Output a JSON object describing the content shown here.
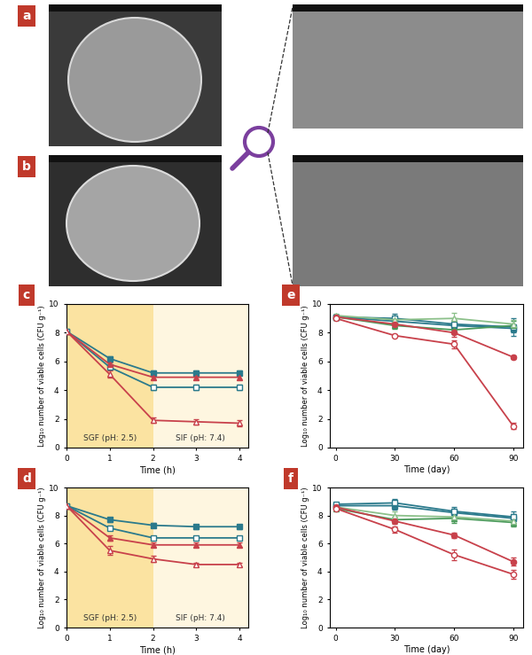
{
  "images": [
    {
      "panel": "a"
    },
    {
      "panel": "b"
    }
  ],
  "chart_data": [
    {
      "panel": "c",
      "type": "line",
      "x": [
        0,
        1,
        2,
        3,
        4
      ],
      "xlim": [
        0,
        4.2
      ],
      "xticks": [
        0,
        1,
        2,
        3,
        4
      ],
      "ylim": [
        0,
        10
      ],
      "yticks": [
        0,
        2,
        4,
        6,
        8,
        10
      ],
      "xlabel": "Time (h)",
      "ylabel": "Log₁₀ number of viable cells (CFU g⁻¹)",
      "regions": [
        {
          "x": [
            0,
            2
          ],
          "label": "SGF (pH: 2.5)",
          "color": "#fbe3a1"
        },
        {
          "x": [
            2,
            4.2
          ],
          "label": "SIF (pH: 7.4)",
          "color": "#fef6e0"
        }
      ],
      "series": [
        {
          "color": "#2b7a8c",
          "marker": "square",
          "values": [
            8.1,
            6.2,
            5.2,
            5.2,
            5.2
          ],
          "errors": [
            0.1,
            0.15,
            0.15,
            0.15,
            0.15
          ]
        },
        {
          "color": "#2b7a8c",
          "marker": "square_open",
          "values": [
            8.1,
            5.6,
            4.2,
            4.2,
            4.2
          ],
          "errors": [
            0.1,
            0.15,
            0.2,
            0.2,
            0.2
          ]
        },
        {
          "color": "#c8414b",
          "marker": "triangle",
          "values": [
            8.1,
            5.8,
            4.9,
            4.9,
            4.9
          ],
          "errors": [
            0.1,
            0.15,
            0.15,
            0.15,
            0.15
          ]
        },
        {
          "color": "#c8414b",
          "marker": "triangle_open",
          "values": [
            8.1,
            5.1,
            1.9,
            1.8,
            1.7
          ],
          "errors": [
            0.1,
            0.25,
            0.2,
            0.2,
            0.2
          ]
        }
      ]
    },
    {
      "panel": "d",
      "type": "line",
      "x": [
        0,
        1,
        2,
        3,
        4
      ],
      "xlim": [
        0,
        4.2
      ],
      "xticks": [
        0,
        1,
        2,
        3,
        4
      ],
      "ylim": [
        0,
        10
      ],
      "yticks": [
        0,
        2,
        4,
        6,
        8,
        10
      ],
      "xlabel": "Time (h)",
      "ylabel": "Log₁₀ number of viable cells (CFU g⁻¹)",
      "regions": [
        {
          "x": [
            0,
            2
          ],
          "label": "SGF (pH: 2.5)",
          "color": "#fbe3a1"
        },
        {
          "x": [
            2,
            4.2
          ],
          "label": "SIF (pH: 7.4)",
          "color": "#fef6e0"
        }
      ],
      "series": [
        {
          "color": "#2b7a8c",
          "marker": "square",
          "values": [
            8.7,
            7.7,
            7.3,
            7.2,
            7.2
          ],
          "errors": [
            0.1,
            0.15,
            0.15,
            0.15,
            0.15
          ]
        },
        {
          "color": "#2b7a8c",
          "marker": "square_open",
          "values": [
            8.7,
            7.1,
            6.4,
            6.4,
            6.4
          ],
          "errors": [
            0.1,
            0.15,
            0.15,
            0.15,
            0.15
          ]
        },
        {
          "color": "#c8414b",
          "marker": "triangle",
          "values": [
            8.7,
            6.4,
            5.9,
            5.9,
            5.9
          ],
          "errors": [
            0.1,
            0.2,
            0.15,
            0.15,
            0.15
          ]
        },
        {
          "color": "#c8414b",
          "marker": "triangle_open",
          "values": [
            8.7,
            5.5,
            4.9,
            4.5,
            4.5
          ],
          "errors": [
            0.1,
            0.3,
            0.2,
            0.15,
            0.15
          ]
        }
      ]
    },
    {
      "panel": "e",
      "type": "line",
      "x": [
        0,
        30,
        60,
        90
      ],
      "xlim": [
        -3,
        95
      ],
      "xticks": [
        0,
        30,
        60,
        90
      ],
      "ylim": [
        0,
        10
      ],
      "yticks": [
        0,
        2,
        4,
        6,
        8,
        10
      ],
      "xlabel": "Time (day)",
      "ylabel": "Log₁₀ number of viable cells (CFU g⁻¹)",
      "series": [
        {
          "color": "#2b7a8c",
          "marker": "square",
          "values": [
            9.1,
            8.8,
            8.5,
            8.3
          ],
          "errors": [
            0.1,
            0.2,
            0.3,
            0.3
          ]
        },
        {
          "color": "#2b7a8c",
          "marker": "square_open",
          "values": [
            9.1,
            9.0,
            8.6,
            8.4
          ],
          "errors": [
            0.1,
            0.3,
            0.3,
            0.6
          ]
        },
        {
          "color": "#4a9a5b",
          "marker": "triangle",
          "values": [
            9.1,
            8.5,
            8.2,
            8.5
          ],
          "errors": [
            0.1,
            0.2,
            0.3,
            0.3
          ]
        },
        {
          "color": "#8cc08a",
          "marker": "triangle_open",
          "values": [
            9.2,
            8.9,
            9.0,
            8.6
          ],
          "errors": [
            0.1,
            0.3,
            0.4,
            0.3
          ]
        },
        {
          "color": "#c8414b",
          "marker": "circle",
          "values": [
            9.1,
            8.6,
            8.0,
            6.3
          ],
          "errors": [
            0.1,
            0.2,
            0.3,
            0.1
          ]
        },
        {
          "color": "#c8414b",
          "marker": "circle_open",
          "values": [
            9.0,
            7.8,
            7.2,
            1.5
          ],
          "errors": [
            0.1,
            0.1,
            0.3,
            0.2
          ]
        }
      ]
    },
    {
      "panel": "f",
      "type": "line",
      "x": [
        0,
        30,
        60,
        90
      ],
      "xlim": [
        -3,
        95
      ],
      "xticks": [
        0,
        30,
        60,
        90
      ],
      "ylim": [
        0,
        10
      ],
      "yticks": [
        0,
        2,
        4,
        6,
        8,
        10
      ],
      "xlabel": "Time (day)",
      "ylabel": "Log₁₀ number of viable cells (CFU g⁻¹)",
      "series": [
        {
          "color": "#2b7a8c",
          "marker": "square",
          "values": [
            8.7,
            8.7,
            8.2,
            7.8
          ],
          "errors": [
            0.1,
            0.3,
            0.3,
            0.3
          ]
        },
        {
          "color": "#2b7a8c",
          "marker": "square_open",
          "values": [
            8.8,
            8.9,
            8.3,
            7.9
          ],
          "errors": [
            0.1,
            0.3,
            0.3,
            0.4
          ]
        },
        {
          "color": "#4a9a5b",
          "marker": "triangle",
          "values": [
            8.5,
            7.7,
            7.8,
            7.5
          ],
          "errors": [
            0.1,
            0.2,
            0.3,
            0.3
          ]
        },
        {
          "color": "#8cc08a",
          "marker": "triangle_open",
          "values": [
            8.6,
            8.0,
            7.9,
            7.6
          ],
          "errors": [
            0.1,
            0.3,
            0.3,
            0.3
          ]
        },
        {
          "color": "#c8414b",
          "marker": "circle",
          "values": [
            8.6,
            7.6,
            6.6,
            4.7
          ],
          "errors": [
            0.1,
            0.2,
            0.2,
            0.3
          ]
        },
        {
          "color": "#c8414b",
          "marker": "circle_open",
          "values": [
            8.5,
            7.0,
            5.2,
            3.8
          ],
          "errors": [
            0.1,
            0.2,
            0.4,
            0.3
          ]
        }
      ]
    }
  ]
}
